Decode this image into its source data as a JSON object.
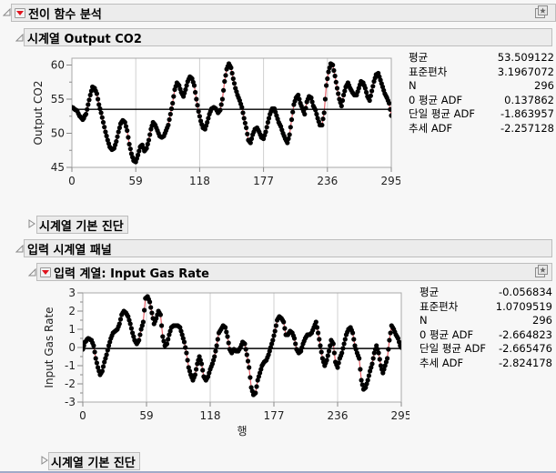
{
  "report": {
    "title": "전이 함수 분석",
    "output_section": {
      "title": "시계열 Output CO2",
      "stats": [
        {
          "label": "평균",
          "value": "53.509122"
        },
        {
          "label": "표준편차",
          "value": "3.1967072"
        },
        {
          "label": "N",
          "value": "296"
        },
        {
          "label": "0 평균 ADF",
          "value": "0.137862"
        },
        {
          "label": "단일 평균 ADF",
          "value": "-1.863957"
        },
        {
          "label": "추세 ADF",
          "value": "-2.257128"
        }
      ],
      "diagnostics_label": "시계열 기본 진단"
    },
    "input_panel": {
      "title": "입력 시계열 패널",
      "series_title": "입력 계열: Input Gas Rate",
      "stats": [
        {
          "label": "평균",
          "value": "-0.056834"
        },
        {
          "label": "표준편차",
          "value": "1.0709519"
        },
        {
          "label": "N",
          "value": "296"
        },
        {
          "label": "0 평균 ADF",
          "value": "-2.664823"
        },
        {
          "label": "단일 평균 ADF",
          "value": "-2.665476"
        },
        {
          "label": "추세 ADF",
          "value": "-2.824178"
        }
      ],
      "diagnostics_label": "시계열 기본 진단"
    },
    "icons": {
      "expanded": "disclosure-expanded-icon",
      "collapsed": "disclosure-collapsed-icon",
      "menu": "red-triangle-menu-icon",
      "star": "star-pin-icon"
    },
    "colors": {
      "line": "#e8636b",
      "marker": "#000000",
      "mean_line": "#000000",
      "grid": "#d0d0d0",
      "header_bg": "#ececec",
      "menu_triangle": "#e0141e"
    }
  },
  "chart_data": [
    {
      "type": "line",
      "title": "",
      "xlabel": "행",
      "ylabel": "Output CO2",
      "xlim": [
        0,
        295
      ],
      "ylim": [
        45,
        61
      ],
      "xticks": [
        0,
        59,
        118,
        177,
        236,
        295
      ],
      "yticks": [
        45,
        50,
        55,
        60
      ],
      "grid": "vertical",
      "mean": 53.509122,
      "keypoints": [
        [
          0,
          53.8
        ],
        [
          4,
          53.4
        ],
        [
          8,
          52.4
        ],
        [
          10,
          52.0
        ],
        [
          13,
          52.8
        ],
        [
          15,
          54.2
        ],
        [
          17,
          55.6
        ],
        [
          19,
          56.8
        ],
        [
          21,
          56.6
        ],
        [
          23,
          55.8
        ],
        [
          25,
          54.2
        ],
        [
          27,
          53.0
        ],
        [
          29,
          51.6
        ],
        [
          31,
          50.2
        ],
        [
          33,
          49.0
        ],
        [
          35,
          48.0
        ],
        [
          37,
          47.6
        ],
        [
          39,
          47.8
        ],
        [
          41,
          48.8
        ],
        [
          43,
          50.2
        ],
        [
          45,
          51.4
        ],
        [
          47,
          51.9
        ],
        [
          49,
          51.6
        ],
        [
          51,
          50.4
        ],
        [
          53,
          48.4
        ],
        [
          55,
          47.0
        ],
        [
          57,
          46.0
        ],
        [
          59,
          45.8
        ],
        [
          61,
          46.8
        ],
        [
          63,
          48.0
        ],
        [
          65,
          48.3
        ],
        [
          67,
          47.4
        ],
        [
          69,
          47.8
        ],
        [
          71,
          49.0
        ],
        [
          73,
          50.6
        ],
        [
          75,
          51.6
        ],
        [
          77,
          51.2
        ],
        [
          79,
          50.4
        ],
        [
          81,
          49.6
        ],
        [
          83,
          49.4
        ],
        [
          85,
          49.6
        ],
        [
          87,
          50.4
        ],
        [
          89,
          51.2
        ],
        [
          91,
          52.8
        ],
        [
          93,
          54.4
        ],
        [
          95,
          56.4
        ],
        [
          97,
          57.4
        ],
        [
          99,
          57.0
        ],
        [
          101,
          56.0
        ],
        [
          103,
          55.4
        ],
        [
          105,
          56.4
        ],
        [
          107,
          57.6
        ],
        [
          109,
          58.3
        ],
        [
          111,
          58.0
        ],
        [
          113,
          57.0
        ],
        [
          115,
          55.0
        ],
        [
          117,
          53.2
        ],
        [
          119,
          51.8
        ],
        [
          121,
          50.8
        ],
        [
          123,
          50.6
        ],
        [
          125,
          51.6
        ],
        [
          127,
          52.8
        ],
        [
          129,
          53.6
        ],
        [
          131,
          53.8
        ],
        [
          133,
          53.6
        ],
        [
          135,
          53.0
        ],
        [
          137,
          53.4
        ],
        [
          139,
          55.0
        ],
        [
          141,
          57.6
        ],
        [
          143,
          59.4
        ],
        [
          145,
          60.2
        ],
        [
          147,
          59.6
        ],
        [
          149,
          58.0
        ],
        [
          151,
          56.6
        ],
        [
          153,
          55.6
        ],
        [
          155,
          54.8
        ],
        [
          157,
          53.8
        ],
        [
          159,
          52.2
        ],
        [
          161,
          50.8
        ],
        [
          163,
          49.0
        ],
        [
          165,
          48.6
        ],
        [
          167,
          49.8
        ],
        [
          169,
          50.6
        ],
        [
          171,
          50.8
        ],
        [
          173,
          50.2
        ],
        [
          175,
          49.4
        ],
        [
          177,
          49.2
        ],
        [
          179,
          50.2
        ],
        [
          181,
          51.6
        ],
        [
          183,
          52.8
        ],
        [
          185,
          53.6
        ],
        [
          187,
          53.6
        ],
        [
          189,
          52.6
        ],
        [
          191,
          51.6
        ],
        [
          193,
          51.0
        ],
        [
          195,
          50.0
        ],
        [
          197,
          49.2
        ],
        [
          199,
          48.6
        ],
        [
          201,
          49.8
        ],
        [
          203,
          52.0
        ],
        [
          205,
          54.2
        ],
        [
          207,
          55.2
        ],
        [
          209,
          55.6
        ],
        [
          211,
          54.4
        ],
        [
          213,
          53.6
        ],
        [
          215,
          52.8
        ],
        [
          217,
          54.6
        ],
        [
          219,
          55.4
        ],
        [
          221,
          55.2
        ],
        [
          223,
          54.0
        ],
        [
          225,
          53.4
        ],
        [
          227,
          52.2
        ],
        [
          229,
          51.2
        ],
        [
          231,
          51.2
        ],
        [
          233,
          53.0
        ],
        [
          235,
          57.0
        ],
        [
          237,
          59.0
        ],
        [
          239,
          60.2
        ],
        [
          241,
          60.0
        ],
        [
          243,
          58.4
        ],
        [
          245,
          56.6
        ],
        [
          247,
          55.0
        ],
        [
          249,
          54.0
        ],
        [
          251,
          55.6
        ],
        [
          253,
          56.8
        ],
        [
          255,
          57.4
        ],
        [
          257,
          56.6
        ],
        [
          259,
          56.0
        ],
        [
          261,
          55.6
        ],
        [
          263,
          55.6
        ],
        [
          265,
          56.6
        ],
        [
          267,
          57.6
        ],
        [
          269,
          57.4
        ],
        [
          271,
          56.6
        ],
        [
          273,
          55.4
        ],
        [
          275,
          54.8
        ],
        [
          277,
          56.2
        ],
        [
          279,
          57.6
        ],
        [
          281,
          58.6
        ],
        [
          283,
          58.8
        ],
        [
          285,
          57.8
        ],
        [
          287,
          56.8
        ],
        [
          289,
          55.8
        ],
        [
          291,
          55.2
        ],
        [
          293,
          54.4
        ],
        [
          295,
          52.6
        ]
      ]
    },
    {
      "type": "line",
      "title": "",
      "xlabel": "행",
      "ylabel": "Input Gas Rate",
      "xlim": [
        0,
        295
      ],
      "ylim": [
        -3,
        3
      ],
      "xticks": [
        0,
        59,
        118,
        177,
        236,
        295
      ],
      "yticks": [
        -3,
        -2,
        -1,
        0,
        1,
        2,
        3
      ],
      "grid": "vertical",
      "mean": -0.056834,
      "keypoints": [
        [
          0,
          -0.1
        ],
        [
          2,
          0.3
        ],
        [
          5,
          0.5
        ],
        [
          8,
          0.4
        ],
        [
          10,
          0.1
        ],
        [
          12,
          -0.6
        ],
        [
          14,
          -1.1
        ],
        [
          16,
          -1.5
        ],
        [
          18,
          -1.3
        ],
        [
          20,
          -0.8
        ],
        [
          22,
          -0.4
        ],
        [
          24,
          0.1
        ],
        [
          26,
          0.5
        ],
        [
          28,
          0.8
        ],
        [
          30,
          0.9
        ],
        [
          32,
          1.0
        ],
        [
          34,
          1.3
        ],
        [
          36,
          1.8
        ],
        [
          38,
          2.0
        ],
        [
          40,
          1.9
        ],
        [
          42,
          1.7
        ],
        [
          44,
          1.3
        ],
        [
          46,
          0.8
        ],
        [
          48,
          0.4
        ],
        [
          50,
          0.2
        ],
        [
          52,
          0.4
        ],
        [
          54,
          1.0
        ],
        [
          56,
          1.4
        ],
        [
          58,
          2.7
        ],
        [
          60,
          2.8
        ],
        [
          62,
          2.5
        ],
        [
          64,
          1.9
        ],
        [
          66,
          1.3
        ],
        [
          68,
          1.6
        ],
        [
          70,
          2.0
        ],
        [
          72,
          1.8
        ],
        [
          74,
          0.6
        ],
        [
          76,
          0.1
        ],
        [
          78,
          0.2
        ],
        [
          80,
          0.7
        ],
        [
          82,
          1.1
        ],
        [
          84,
          1.2
        ],
        [
          86,
          1.2
        ],
        [
          88,
          1.2
        ],
        [
          90,
          1.1
        ],
        [
          92,
          0.7
        ],
        [
          94,
          0.3
        ],
        [
          96,
          -0.3
        ],
        [
          98,
          -1.1
        ],
        [
          100,
          -1.5
        ],
        [
          102,
          -1.8
        ],
        [
          104,
          -1.5
        ],
        [
          106,
          -0.9
        ],
        [
          108,
          -0.5
        ],
        [
          110,
          -0.9
        ],
        [
          112,
          -1.6
        ],
        [
          114,
          -1.8
        ],
        [
          116,
          -1.6
        ],
        [
          118,
          -1.2
        ],
        [
          120,
          -0.9
        ],
        [
          122,
          -0.5
        ],
        [
          124,
          0.1
        ],
        [
          126,
          0.8
        ],
        [
          128,
          1.0
        ],
        [
          130,
          1.2
        ],
        [
          132,
          1.1
        ],
        [
          134,
          0.6
        ],
        [
          136,
          -0.1
        ],
        [
          138,
          -0.3
        ],
        [
          140,
          -0.1
        ],
        [
          142,
          -0.2
        ],
        [
          144,
          -0.2
        ],
        [
          146,
          0.0
        ],
        [
          148,
          0.3
        ],
        [
          150,
          0.2
        ],
        [
          152,
          -0.4
        ],
        [
          154,
          -1.1
        ],
        [
          156,
          -2.2
        ],
        [
          158,
          -2.6
        ],
        [
          160,
          -2.5
        ],
        [
          162,
          -1.8
        ],
        [
          164,
          -1.4
        ],
        [
          166,
          -1.0
        ],
        [
          168,
          -0.8
        ],
        [
          170,
          -0.7
        ],
        [
          172,
          -0.4
        ],
        [
          174,
          0.0
        ],
        [
          176,
          0.4
        ],
        [
          178,
          0.9
        ],
        [
          180,
          1.5
        ],
        [
          182,
          1.7
        ],
        [
          184,
          1.6
        ],
        [
          186,
          1.4
        ],
        [
          188,
          0.7
        ],
        [
          190,
          0.7
        ],
        [
          192,
          0.9
        ],
        [
          194,
          0.8
        ],
        [
          196,
          0.5
        ],
        [
          198,
          -0.1
        ],
        [
          200,
          -0.3
        ],
        [
          202,
          -0.2
        ],
        [
          204,
          0.2
        ],
        [
          206,
          0.5
        ],
        [
          208,
          0.7
        ],
        [
          210,
          0.7
        ],
        [
          212,
          0.8
        ],
        [
          214,
          1.1
        ],
        [
          216,
          1.4
        ],
        [
          218,
          0.8
        ],
        [
          220,
          0.1
        ],
        [
          222,
          -0.6
        ],
        [
          224,
          -1.0
        ],
        [
          226,
          -0.7
        ],
        [
          228,
          -0.2
        ],
        [
          230,
          0.4
        ],
        [
          232,
          0.2
        ],
        [
          234,
          -0.8
        ],
        [
          236,
          -1.1
        ],
        [
          238,
          -0.6
        ],
        [
          240,
          -0.3
        ],
        [
          242,
          0.2
        ],
        [
          244,
          0.7
        ],
        [
          246,
          1.0
        ],
        [
          248,
          1.1
        ],
        [
          250,
          0.8
        ],
        [
          252,
          0.1
        ],
        [
          254,
          -0.3
        ],
        [
          256,
          -0.6
        ],
        [
          258,
          -1.8
        ],
        [
          260,
          -2.3
        ],
        [
          262,
          -2.2
        ],
        [
          264,
          -1.8
        ],
        [
          266,
          -1.3
        ],
        [
          268,
          -0.9
        ],
        [
          270,
          -0.3
        ],
        [
          272,
          0.1
        ],
        [
          274,
          -0.3
        ],
        [
          276,
          -1.0
        ],
        [
          278,
          -1.4
        ],
        [
          280,
          -1.0
        ],
        [
          282,
          -0.6
        ],
        [
          284,
          0.4
        ],
        [
          286,
          1.2
        ],
        [
          288,
          1.0
        ],
        [
          290,
          0.7
        ],
        [
          292,
          0.5
        ],
        [
          294,
          0.1
        ],
        [
          295,
          0.0
        ]
      ]
    }
  ]
}
